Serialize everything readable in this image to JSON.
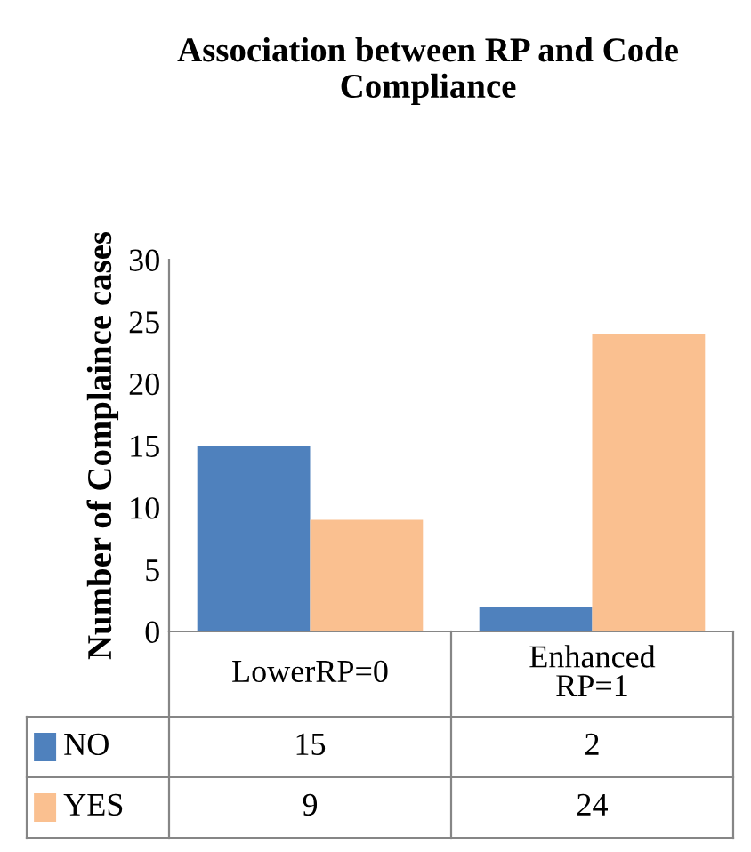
{
  "chart_data": {
    "type": "bar",
    "title": "Association between RP and Code Compliance",
    "ylabel": "Number of Complaince cases",
    "categories": [
      "LowerRP=0",
      "Enhanced\nRP=1"
    ],
    "series": [
      {
        "name": "NO",
        "color": "#4f81bd",
        "values": [
          15,
          2
        ]
      },
      {
        "name": "YES",
        "color": "#fac090",
        "values": [
          9,
          24
        ]
      }
    ],
    "ylim": [
      0,
      30
    ],
    "yticks": [
      0,
      5,
      10,
      15,
      20,
      25,
      30
    ],
    "grid": false,
    "legend": "bottom left",
    "data_labels": true
  }
}
